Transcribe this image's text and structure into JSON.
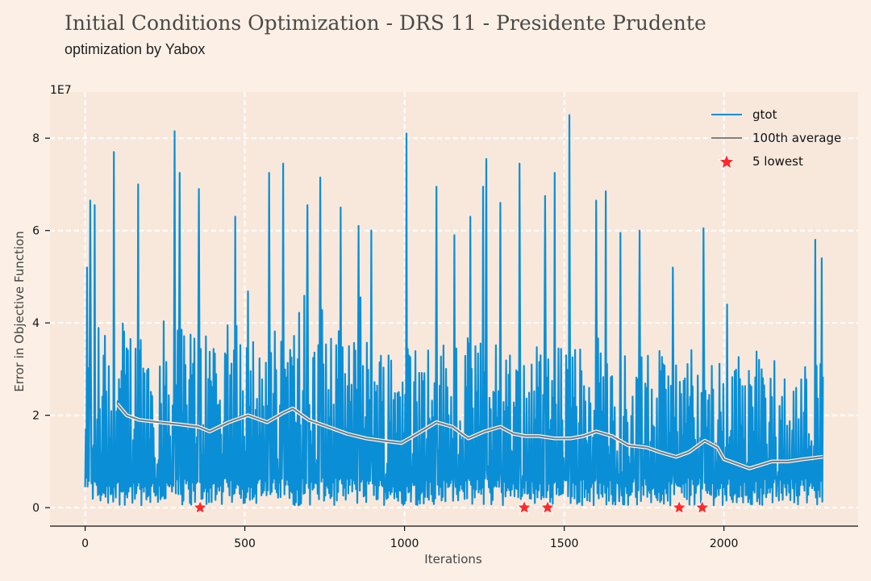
{
  "header": {
    "title": "Initial Conditions Optimization - DRS 11 - Presidente Prudente",
    "subtitle": "optimization by Yabox"
  },
  "colors": {
    "background": "#fcf0e6",
    "plot_background": "#f8e8dc",
    "grid": "#ffffff",
    "gtot": "#0a8fd6",
    "average": "#808080",
    "lowest": "#ff2a2a"
  },
  "chart_data": {
    "type": "line",
    "xlabel": "Iterations",
    "ylabel": "Error in Objective Function",
    "y_offset_label": "1E7",
    "xlim": [
      -110,
      2420
    ],
    "ylim": [
      -0.4,
      9.0
    ],
    "xticks": [
      0,
      500,
      1000,
      1500,
      2000
    ],
    "yticks": [
      0,
      2,
      4,
      6,
      8
    ],
    "grid": true,
    "legend_position": "top-right",
    "series": [
      {
        "name": "gtot",
        "style": "line",
        "x_start": 0,
        "x_end": 2310,
        "peaks": [
          {
            "x": 5,
            "y": 5.2
          },
          {
            "x": 15,
            "y": 6.65
          },
          {
            "x": 30,
            "y": 6.55
          },
          {
            "x": 90,
            "y": 7.7
          },
          {
            "x": 165,
            "y": 7.0
          },
          {
            "x": 280,
            "y": 8.15
          },
          {
            "x": 295,
            "y": 7.25
          },
          {
            "x": 355,
            "y": 6.9
          },
          {
            "x": 470,
            "y": 6.3
          },
          {
            "x": 575,
            "y": 7.25
          },
          {
            "x": 620,
            "y": 7.45
          },
          {
            "x": 695,
            "y": 6.55
          },
          {
            "x": 735,
            "y": 7.15
          },
          {
            "x": 800,
            "y": 6.5
          },
          {
            "x": 855,
            "y": 6.1
          },
          {
            "x": 895,
            "y": 6.0
          },
          {
            "x": 1005,
            "y": 8.1
          },
          {
            "x": 1100,
            "y": 6.95
          },
          {
            "x": 1155,
            "y": 5.9
          },
          {
            "x": 1205,
            "y": 6.3
          },
          {
            "x": 1245,
            "y": 6.95
          },
          {
            "x": 1255,
            "y": 7.55
          },
          {
            "x": 1300,
            "y": 6.6
          },
          {
            "x": 1360,
            "y": 7.45
          },
          {
            "x": 1440,
            "y": 6.75
          },
          {
            "x": 1470,
            "y": 7.25
          },
          {
            "x": 1515,
            "y": 8.5
          },
          {
            "x": 1600,
            "y": 6.65
          },
          {
            "x": 1630,
            "y": 6.85
          },
          {
            "x": 1675,
            "y": 5.95
          },
          {
            "x": 1735,
            "y": 6.0
          },
          {
            "x": 1840,
            "y": 5.2
          },
          {
            "x": 1935,
            "y": 6.05
          },
          {
            "x": 2010,
            "y": 4.4
          },
          {
            "x": 2285,
            "y": 5.8
          },
          {
            "x": 2305,
            "y": 5.4
          }
        ]
      },
      {
        "name": "100th average",
        "style": "line",
        "x": [
          100,
          130,
          170,
          230,
          300,
          355,
          390,
          450,
          510,
          570,
          620,
          650,
          700,
          760,
          820,
          880,
          930,
          990,
          1040,
          1100,
          1150,
          1200,
          1250,
          1300,
          1340,
          1380,
          1420,
          1470,
          1520,
          1560,
          1600,
          1650,
          1700,
          1760,
          1800,
          1850,
          1890,
          1940,
          1980,
          2000,
          2040,
          2080,
          2150,
          2200,
          2250,
          2310
        ],
        "values": [
          2.25,
          2.0,
          1.9,
          1.85,
          1.8,
          1.75,
          1.65,
          1.85,
          2.0,
          1.85,
          2.05,
          2.15,
          1.9,
          1.75,
          1.6,
          1.5,
          1.45,
          1.4,
          1.6,
          1.85,
          1.75,
          1.5,
          1.65,
          1.75,
          1.6,
          1.55,
          1.55,
          1.5,
          1.5,
          1.55,
          1.65,
          1.55,
          1.35,
          1.3,
          1.2,
          1.1,
          1.2,
          1.45,
          1.3,
          1.05,
          0.95,
          0.85,
          1.0,
          1.0,
          1.05,
          1.1
        ]
      },
      {
        "name": "5 lowest",
        "style": "markers",
        "x": [
          360,
          1375,
          1448,
          1860,
          1932
        ],
        "values": [
          0.0,
          0.0,
          0.0,
          0.0,
          0.0
        ]
      }
    ]
  }
}
